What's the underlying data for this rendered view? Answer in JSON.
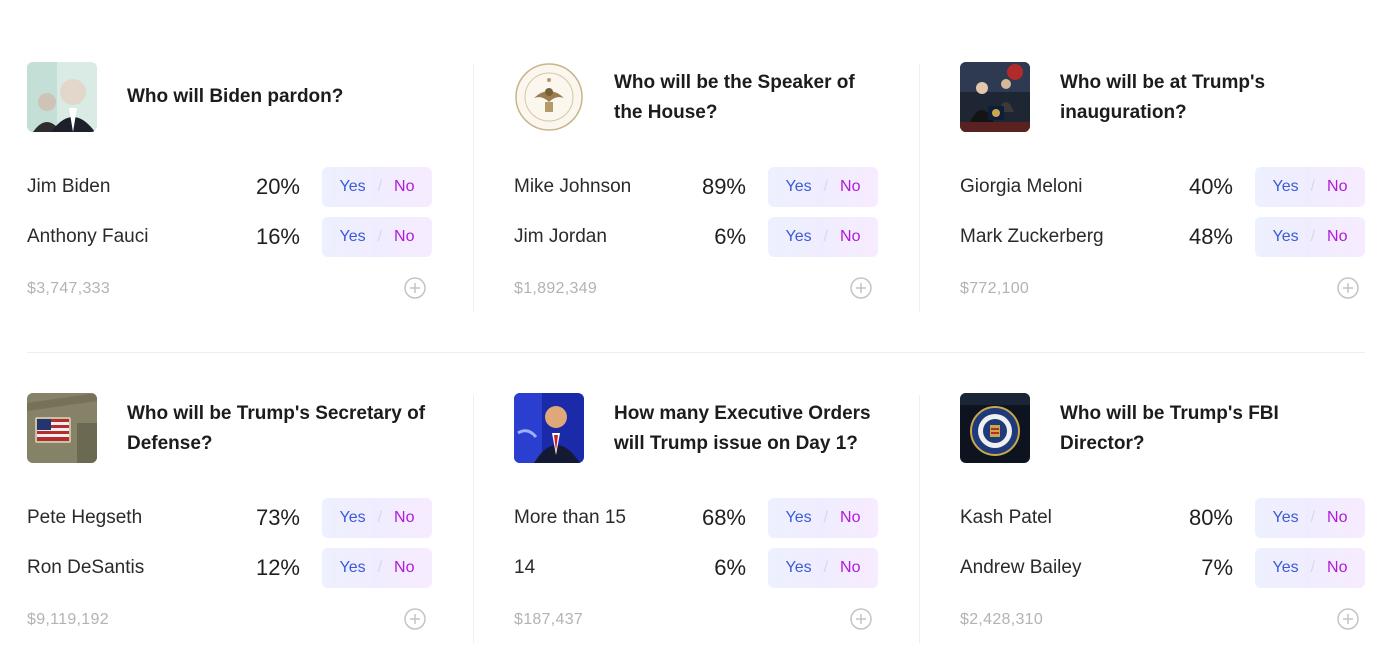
{
  "markets": [
    {
      "title": "Who will Biden pardon?",
      "image_icon": "biden-photo",
      "outcomes": [
        {
          "name": "Jim Biden",
          "percent": "20%",
          "yes": "Yes",
          "no": "No"
        },
        {
          "name": "Anthony Fauci",
          "percent": "16%",
          "yes": "Yes",
          "no": "No"
        }
      ],
      "volume": "$3,747,333"
    },
    {
      "title": "Who will be the Speaker of the House?",
      "image_icon": "speaker-seal",
      "outcomes": [
        {
          "name": "Mike Johnson",
          "percent": "89%",
          "yes": "Yes",
          "no": "No"
        },
        {
          "name": "Jim Jordan",
          "percent": "6%",
          "yes": "Yes",
          "no": "No"
        }
      ],
      "volume": "$1,892,349"
    },
    {
      "title": "Who will be at Trump's inauguration?",
      "image_icon": "inauguration-photo",
      "outcomes": [
        {
          "name": "Giorgia Meloni",
          "percent": "40%",
          "yes": "Yes",
          "no": "No"
        },
        {
          "name": "Mark Zuckerberg",
          "percent": "48%",
          "yes": "Yes",
          "no": "No"
        }
      ],
      "volume": "$772,100"
    },
    {
      "title": "Who will be Trump's Secretary of Defense?",
      "image_icon": "flag-patch-photo",
      "outcomes": [
        {
          "name": "Pete Hegseth",
          "percent": "73%",
          "yes": "Yes",
          "no": "No"
        },
        {
          "name": "Ron DeSantis",
          "percent": "12%",
          "yes": "Yes",
          "no": "No"
        }
      ],
      "volume": "$9,119,192"
    },
    {
      "title": "How many Executive Orders will Trump issue on Day 1?",
      "image_icon": "trump-photo",
      "outcomes": [
        {
          "name": "More than 15",
          "percent": "68%",
          "yes": "Yes",
          "no": "No"
        },
        {
          "name": "14",
          "percent": "6%",
          "yes": "Yes",
          "no": "No"
        }
      ],
      "volume": "$187,437"
    },
    {
      "title": "Who will be Trump's FBI Director?",
      "image_icon": "fbi-seal",
      "outcomes": [
        {
          "name": "Kash Patel",
          "percent": "80%",
          "yes": "Yes",
          "no": "No"
        },
        {
          "name": "Andrew Bailey",
          "percent": "7%",
          "yes": "Yes",
          "no": "No"
        }
      ],
      "volume": "$2,428,310"
    }
  ],
  "colors": {
    "yes": "#3b5bd6",
    "no": "#b01ad9",
    "volume": "#b3b3b3",
    "divider": "#efefef"
  }
}
